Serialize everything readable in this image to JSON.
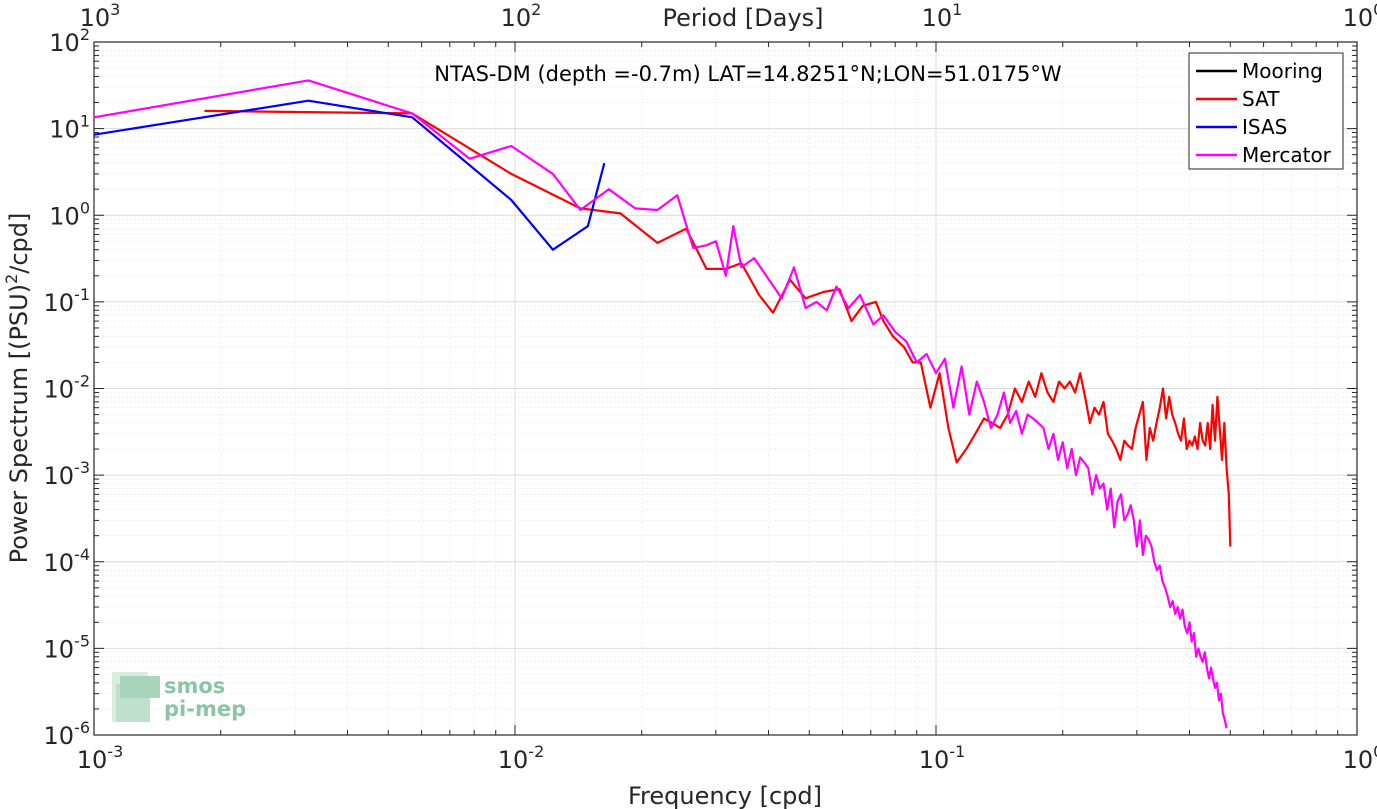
{
  "chart_data": {
    "type": "line",
    "title": "NTAS-DM (depth =-0.7m) LAT=14.8251°N;LON=51.0175°W",
    "xlabel": "Frequency [cpd]",
    "ylabel_main": "Power Spectrum [(PSU)",
    "ylabel_sup": "2",
    "ylabel_tail": "/cpd]",
    "top_axis_label": "Period [Days]",
    "x_scale": "log",
    "y_scale": "log",
    "xlim": [
      0.001,
      1
    ],
    "ylim": [
      1e-06,
      100
    ],
    "grid": true,
    "legend_position": "top-right",
    "x_ticks": [
      {
        "value": 0.001,
        "base": "10",
        "exp": "-3"
      },
      {
        "value": 0.01,
        "base": "10",
        "exp": "-2"
      },
      {
        "value": 0.1,
        "base": "10",
        "exp": "-1"
      },
      {
        "value": 1,
        "base": "10",
        "exp": "0"
      }
    ],
    "y_ticks": [
      {
        "value": 100,
        "base": "10",
        "exp": "2"
      },
      {
        "value": 10,
        "base": "10",
        "exp": "1"
      },
      {
        "value": 1,
        "base": "10",
        "exp": "0"
      },
      {
        "value": 0.1,
        "base": "10",
        "exp": "-1"
      },
      {
        "value": 0.01,
        "base": "10",
        "exp": "-2"
      },
      {
        "value": 0.001,
        "base": "10",
        "exp": "-3"
      },
      {
        "value": 0.0001,
        "base": "10",
        "exp": "-4"
      },
      {
        "value": 1e-05,
        "base": "10",
        "exp": "-5"
      },
      {
        "value": 1e-06,
        "base": "10",
        "exp": "-6"
      }
    ],
    "top_ticks": [
      {
        "frequency": 0.001,
        "base": "10",
        "exp": "3"
      },
      {
        "frequency": 0.01,
        "base": "10",
        "exp": "2"
      },
      {
        "frequency": 0.1,
        "base": "10",
        "exp": "1"
      },
      {
        "frequency": 1,
        "base": "10",
        "exp": "0"
      }
    ],
    "series": [
      {
        "name": "Mooring",
        "color": "#000000",
        "x": [],
        "y": []
      },
      {
        "name": "SAT",
        "color": "#ff0000",
        "x": [
          0.00183,
          0.0032,
          0.0057,
          0.0098,
          0.0143,
          0.0178,
          0.0218,
          0.0255,
          0.0285,
          0.0317,
          0.0345,
          0.038,
          0.041,
          0.045,
          0.049,
          0.054,
          0.059,
          0.063,
          0.067,
          0.072,
          0.075,
          0.079,
          0.084,
          0.088,
          0.092,
          0.097,
          0.102,
          0.107,
          0.112,
          0.118,
          0.124,
          0.13,
          0.136,
          0.142,
          0.148,
          0.154,
          0.16,
          0.166,
          0.172,
          0.178,
          0.184,
          0.19,
          0.196,
          0.202,
          0.208,
          0.214,
          0.22,
          0.226,
          0.232,
          0.238,
          0.244,
          0.25,
          0.256,
          0.262,
          0.268,
          0.274,
          0.28,
          0.286,
          0.292,
          0.298,
          0.304,
          0.31,
          0.316,
          0.322,
          0.328,
          0.334,
          0.34,
          0.346,
          0.352,
          0.358,
          0.364,
          0.37,
          0.376,
          0.382,
          0.388,
          0.394,
          0.4,
          0.406,
          0.412,
          0.418,
          0.424,
          0.43,
          0.436,
          0.442,
          0.448,
          0.454,
          0.46,
          0.466,
          0.472,
          0.478,
          0.484,
          0.49,
          0.496,
          0.5
        ],
        "y": [
          16,
          15.5,
          15,
          3,
          1.2,
          1.05,
          0.48,
          0.7,
          0.24,
          0.24,
          0.28,
          0.12,
          0.075,
          0.18,
          0.11,
          0.13,
          0.14,
          0.06,
          0.09,
          0.1,
          0.06,
          0.04,
          0.03,
          0.02,
          0.02,
          0.006,
          0.015,
          0.0035,
          0.0014,
          0.002,
          0.003,
          0.0045,
          0.004,
          0.0035,
          0.005,
          0.01,
          0.007,
          0.012,
          0.008,
          0.015,
          0.009,
          0.007,
          0.012,
          0.01,
          0.012,
          0.009,
          0.015,
          0.008,
          0.004,
          0.006,
          0.005,
          0.007,
          0.003,
          0.0025,
          0.002,
          0.0015,
          0.0025,
          0.0022,
          0.002,
          0.0035,
          0.005,
          0.007,
          0.0015,
          0.0035,
          0.0025,
          0.004,
          0.006,
          0.01,
          0.0045,
          0.008,
          0.005,
          0.004,
          0.003,
          0.0025,
          0.0045,
          0.002,
          0.0025,
          0.0022,
          0.0028,
          0.002,
          0.004,
          0.0025,
          0.0022,
          0.004,
          0.002,
          0.0065,
          0.0025,
          0.008,
          0.0035,
          0.0015,
          0.004,
          0.0012,
          0.0006,
          0.00015
        ]
      },
      {
        "name": "ISAS",
        "color": "#0000ff",
        "x": [
          0.001,
          0.00323,
          0.0057,
          0.0098,
          0.0123,
          0.0149,
          0.0163
        ],
        "y": [
          8.5,
          21,
          13.5,
          1.5,
          0.4,
          0.75,
          4
        ]
      },
      {
        "name": "Mercator",
        "color": "#ff00ff",
        "x": [
          0.001,
          0.00323,
          0.0057,
          0.0078,
          0.0098,
          0.0123,
          0.0143,
          0.0167,
          0.0193,
          0.0218,
          0.0243,
          0.0265,
          0.0285,
          0.03,
          0.0317,
          0.033,
          0.0345,
          0.037,
          0.039,
          0.043,
          0.046,
          0.049,
          0.052,
          0.055,
          0.058,
          0.062,
          0.066,
          0.071,
          0.075,
          0.08,
          0.085,
          0.09,
          0.095,
          0.1,
          0.105,
          0.11,
          0.115,
          0.12,
          0.125,
          0.13,
          0.135,
          0.14,
          0.145,
          0.15,
          0.155,
          0.16,
          0.165,
          0.17,
          0.175,
          0.18,
          0.185,
          0.19,
          0.195,
          0.2,
          0.205,
          0.21,
          0.215,
          0.22,
          0.225,
          0.23,
          0.235,
          0.24,
          0.245,
          0.25,
          0.255,
          0.26,
          0.265,
          0.27,
          0.275,
          0.28,
          0.285,
          0.29,
          0.295,
          0.3,
          0.305,
          0.31,
          0.315,
          0.32,
          0.325,
          0.33,
          0.335,
          0.34,
          0.345,
          0.35,
          0.355,
          0.36,
          0.365,
          0.37,
          0.375,
          0.38,
          0.385,
          0.39,
          0.395,
          0.4,
          0.405,
          0.41,
          0.415,
          0.42,
          0.425,
          0.43,
          0.435,
          0.44,
          0.445,
          0.45,
          0.455,
          0.46,
          0.465,
          0.47,
          0.475,
          0.48,
          0.485,
          0.49
        ],
        "y": [
          13.5,
          36,
          15,
          4.5,
          6.3,
          3,
          1.15,
          2,
          1.2,
          1.15,
          1.7,
          0.42,
          0.45,
          0.5,
          0.2,
          0.75,
          0.25,
          0.32,
          0.22,
          0.11,
          0.25,
          0.085,
          0.1,
          0.08,
          0.15,
          0.085,
          0.12,
          0.055,
          0.07,
          0.045,
          0.035,
          0.02,
          0.025,
          0.015,
          0.022,
          0.006,
          0.018,
          0.005,
          0.012,
          0.007,
          0.0035,
          0.005,
          0.009,
          0.004,
          0.0055,
          0.003,
          0.005,
          0.0045,
          0.004,
          0.0035,
          0.002,
          0.003,
          0.0015,
          0.0024,
          0.0012,
          0.002,
          0.001,
          0.0016,
          0.0014,
          0.0012,
          0.0006,
          0.001,
          0.0007,
          0.0008,
          0.0004,
          0.0007,
          0.00025,
          0.0005,
          0.0006,
          0.0003,
          0.00035,
          0.00045,
          0.0003,
          0.00015,
          0.0003,
          0.00012,
          0.0002,
          0.00018,
          0.00015,
          0.0001,
          8e-05,
          9e-05,
          6e-05,
          5e-05,
          4e-05,
          3e-05,
          3.5e-05,
          2.5e-05,
          3e-05,
          2.2e-05,
          2.8e-05,
          1.8e-05,
          1.5e-05,
          2e-05,
          1.2e-05,
          1.5e-05,
          8e-06,
          1e-05,
          8e-06,
          7e-06,
          9e-06,
          6e-06,
          4.5e-06,
          6e-06,
          4.5e-06,
          3.5e-06,
          4e-06,
          2.5e-06,
          3e-06,
          1.8e-06,
          1.5e-06,
          1.2e-06
        ]
      }
    ]
  },
  "logo": {
    "line1": "smos",
    "line2": "pi-mep"
  }
}
